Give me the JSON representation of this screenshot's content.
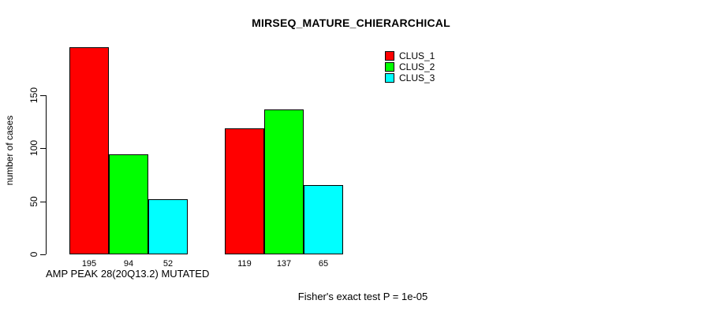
{
  "chart_data": {
    "type": "bar",
    "title": "MIRSEQ_MATURE_CHIERARCHICAL",
    "ylabel": "number of cases",
    "xlabel": "AMP PEAK 28(20Q13.2) MUTATED",
    "footnote": "Fisher's exact test P = 1e-05",
    "yticks": [
      0,
      50,
      100,
      150
    ],
    "ylim": [
      0,
      150
    ],
    "grid": false,
    "legend_position": "top-right",
    "bar_value_labels_shown": true,
    "groups": 2,
    "series": [
      {
        "name": "CLUS_1",
        "color": "#ff0000",
        "values": [
          195,
          119
        ]
      },
      {
        "name": "CLUS_2",
        "color": "#00ff00",
        "values": [
          94,
          137
        ]
      },
      {
        "name": "CLUS_3",
        "color": "#00ffff",
        "values": [
          52,
          65
        ]
      }
    ]
  }
}
